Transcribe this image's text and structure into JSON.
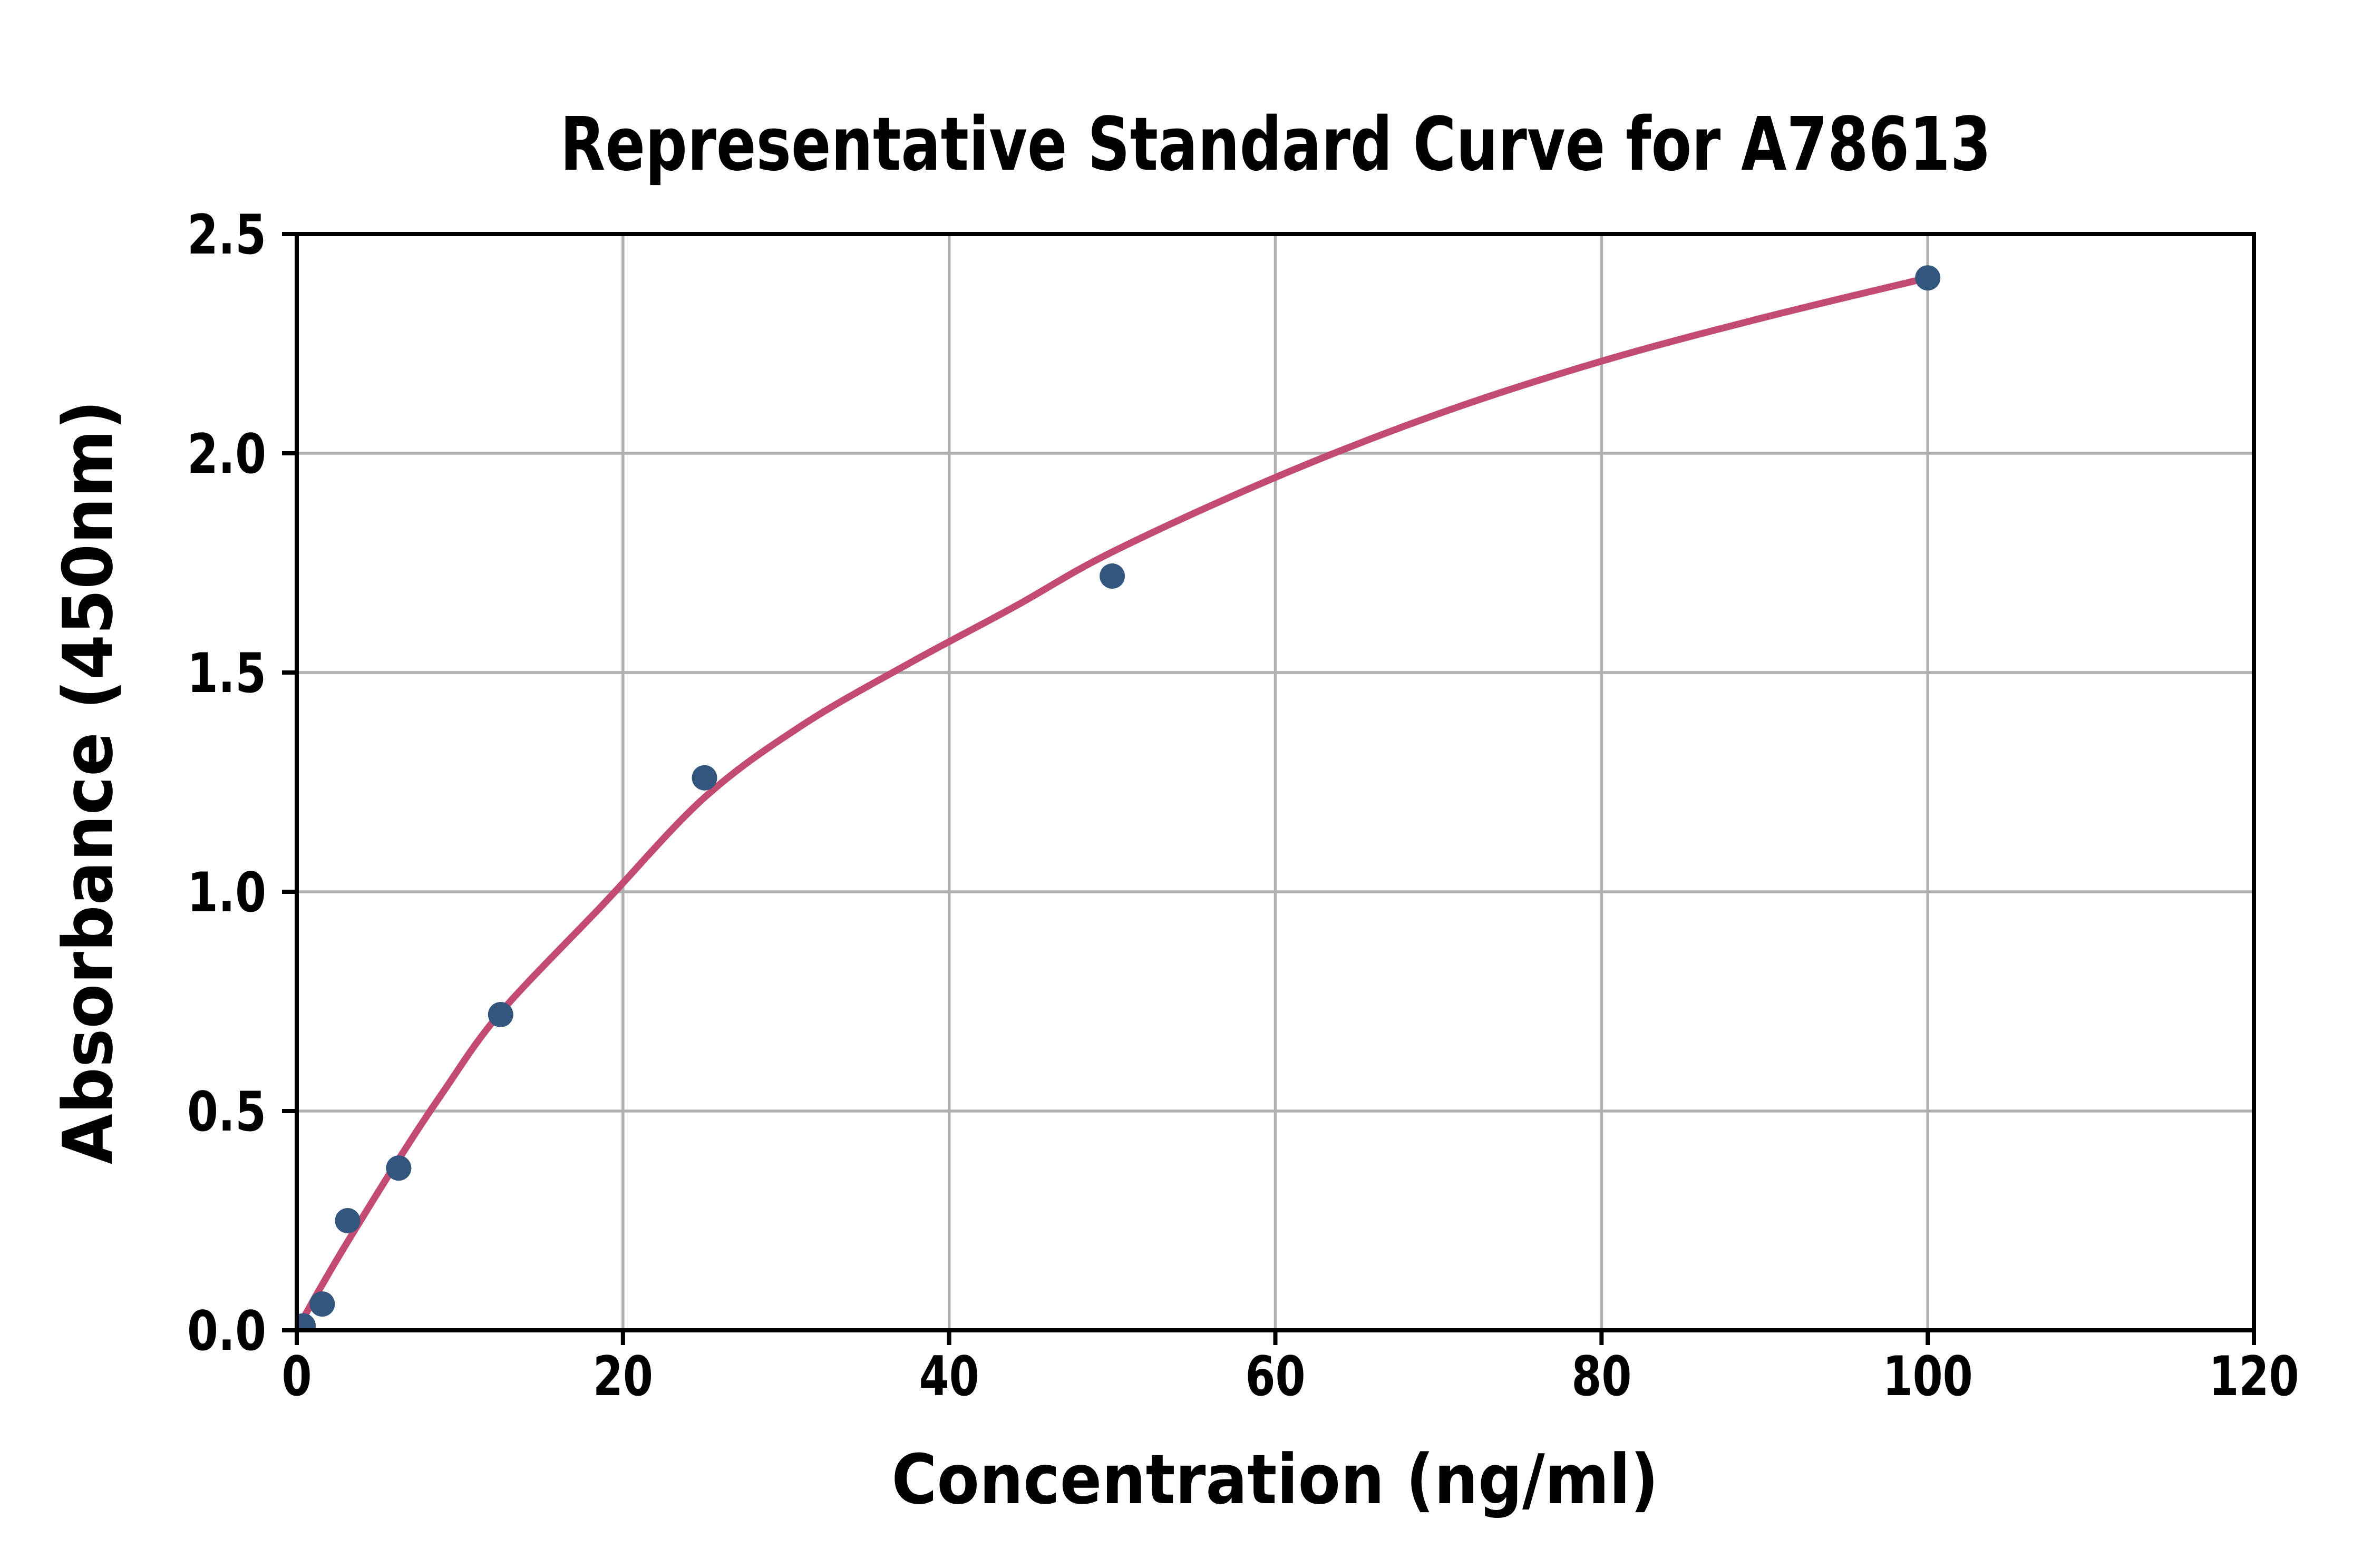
{
  "title": "Representative Standard Curve for A78613",
  "x_axis": {
    "label": "Concentration (ng/ml)",
    "tick_labels": [
      "0",
      "20",
      "40",
      "60",
      "80",
      "100",
      "120"
    ],
    "tick_values": [
      0,
      20,
      40,
      60,
      80,
      100,
      120
    ],
    "range": [
      0,
      120
    ]
  },
  "y_axis": {
    "label": "Absorbance (450nm)",
    "tick_labels": [
      "0.0",
      "0.5",
      "1.0",
      "1.5",
      "2.0",
      "2.5"
    ],
    "tick_values": [
      0,
      0.5,
      1.0,
      1.5,
      2.0,
      2.5
    ],
    "range": [
      0,
      2.5
    ]
  },
  "chart_data": {
    "type": "scatter",
    "title": "Representative Standard Curve for A78613",
    "xlabel": "Concentration (ng/ml)",
    "ylabel": "Absorbance (450nm)",
    "xlim": [
      0,
      120
    ],
    "ylim": [
      0,
      2.5
    ],
    "grid": true,
    "legend": false,
    "points": {
      "x": [
        0.39,
        1.56,
        3.12,
        6.25,
        12.5,
        25,
        50,
        100
      ],
      "y": [
        0.01,
        0.06,
        0.25,
        0.37,
        0.72,
        1.26,
        1.72,
        2.4
      ]
    },
    "fit_curve": {
      "description": "four-parameter-logistic style fit, drawn from 0 to 100 ng/ml",
      "x": [
        0,
        0.8,
        1.56,
        3.12,
        6.25,
        9,
        12.5,
        18.75,
        25,
        31,
        37.5,
        44,
        50,
        60,
        70,
        80,
        90,
        100
      ],
      "y": [
        0,
        0.054,
        0.104,
        0.202,
        0.39,
        0.545,
        0.725,
        0.97,
        1.215,
        1.38,
        1.52,
        1.65,
        1.775,
        1.945,
        2.09,
        2.21,
        2.31,
        2.4
      ]
    },
    "colors": {
      "marker": "#32567D",
      "curve": "#C34B72",
      "grid": "#B0B0B0",
      "axis": "#000000",
      "background": "#FFFFFF",
      "text": "#000000"
    }
  }
}
